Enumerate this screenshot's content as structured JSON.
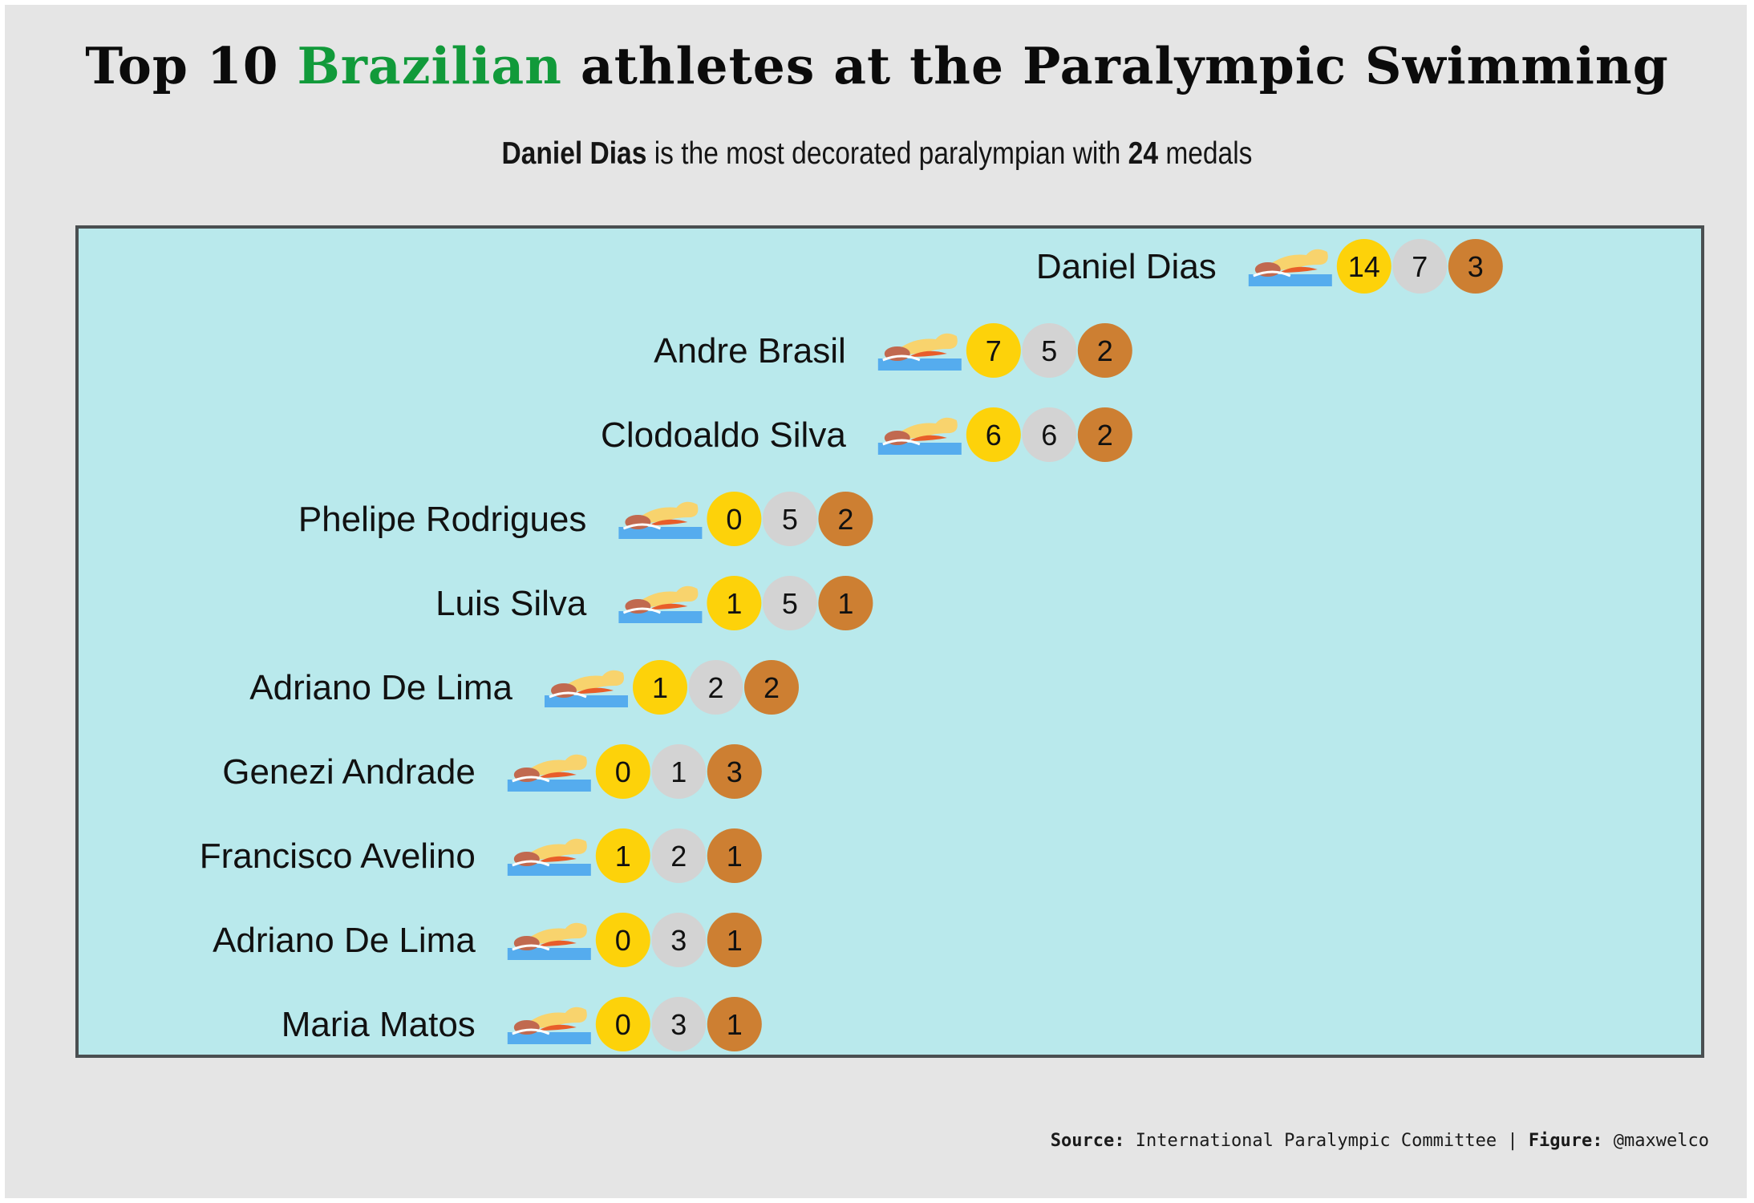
{
  "title": {
    "part1": "Top 10",
    "highlight": "Brazilian",
    "part2": "athletes at the Paralympic Swimming",
    "highlight_color": "#119a3a"
  },
  "subtitle": {
    "name": "Daniel Dias",
    "middle": "is the most decorated paralympian with",
    "count": "24",
    "end": "medals"
  },
  "footer": {
    "source_label": "Source:",
    "source_text": "International Paralympic Committee |",
    "figure_label": "Figure:",
    "figure_text": "@maxwelco"
  },
  "colors": {
    "background": "#e5e5e5",
    "panel": "#b9e9ec",
    "gold": "#fdd20a",
    "silver": "#d3d3d3",
    "bronze": "#cd7f32"
  },
  "icon": "swimmer-icon",
  "chart_data": {
    "type": "table",
    "athletes": [
      {
        "name": "Daniel Dias",
        "gold": 14,
        "silver": 7,
        "bronze": 3
      },
      {
        "name": "Andre Brasil",
        "gold": 7,
        "silver": 5,
        "bronze": 2
      },
      {
        "name": "Clodoaldo Silva",
        "gold": 6,
        "silver": 6,
        "bronze": 2
      },
      {
        "name": "Phelipe Rodrigues",
        "gold": 0,
        "silver": 5,
        "bronze": 2
      },
      {
        "name": "Luis Silva",
        "gold": 1,
        "silver": 5,
        "bronze": 1
      },
      {
        "name": "Adriano De Lima",
        "gold": 1,
        "silver": 2,
        "bronze": 2
      },
      {
        "name": "Genezi Andrade",
        "gold": 0,
        "silver": 1,
        "bronze": 3
      },
      {
        "name": "Francisco Avelino",
        "gold": 1,
        "silver": 2,
        "bronze": 1
      },
      {
        "name": "Adriano De Lima",
        "gold": 0,
        "silver": 3,
        "bronze": 1
      },
      {
        "name": "Maria Matos",
        "gold": 0,
        "silver": 3,
        "bronze": 1
      }
    ]
  }
}
